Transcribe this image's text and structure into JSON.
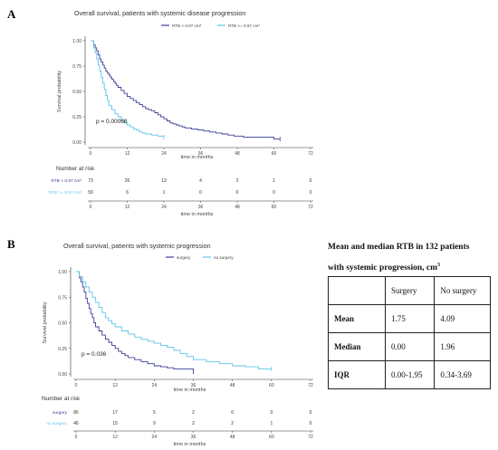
{
  "panels": {
    "a": {
      "letter": "A",
      "chart_data": {
        "type": "line",
        "title": "Overall survival, patients with systemic disease progression",
        "xlabel": "time in months",
        "ylabel": "Survival probability",
        "xlim": [
          0,
          72
        ],
        "ylim": [
          0,
          1
        ],
        "x_ticks": [
          0,
          12,
          24,
          36,
          48,
          60,
          72
        ],
        "y_ticks": [
          "0.00",
          "0.25",
          "0.50",
          "0.75",
          "1.00"
        ],
        "legend_placement": "top",
        "annotation": "p = 0.00068",
        "series": [
          {
            "name": "RTB < 0.97 cm^3",
            "color": "#3b3f99",
            "x": [
              0,
              1,
              1.5,
              2,
              2.5,
              3,
              3.5,
              4,
              4.5,
              5,
              5.5,
              6,
              6.5,
              7,
              7.5,
              8,
              8.5,
              9,
              10,
              11,
              12,
              13,
              14,
              15,
              16,
              17,
              18,
              19,
              20,
              21,
              22,
              23,
              24,
              25,
              26,
              27,
              28,
              29,
              30,
              31,
              33,
              35,
              37,
              39,
              41,
              43,
              45,
              47,
              50,
              53,
              56,
              60,
              62
            ],
            "y": [
              1.0,
              0.96,
              0.93,
              0.9,
              0.86,
              0.82,
              0.79,
              0.76,
              0.73,
              0.7,
              0.68,
              0.66,
              0.64,
              0.62,
              0.6,
              0.58,
              0.56,
              0.54,
              0.51,
              0.48,
              0.45,
              0.43,
              0.41,
              0.39,
              0.37,
              0.35,
              0.33,
              0.32,
              0.31,
              0.29,
              0.27,
              0.25,
              0.23,
              0.21,
              0.19,
              0.18,
              0.17,
              0.16,
              0.15,
              0.14,
              0.13,
              0.12,
              0.11,
              0.1,
              0.09,
              0.08,
              0.07,
              0.06,
              0.05,
              0.05,
              0.05,
              0.03,
              0.03
            ]
          },
          {
            "name": "RTB >= 0.97 cm^3",
            "color": "#5fc4ea",
            "x": [
              0,
              1,
              1.5,
              2,
              2.5,
              3,
              3.5,
              4,
              4.5,
              5,
              5.5,
              6,
              7,
              8,
              9,
              10,
              11,
              12,
              13,
              14,
              15,
              16,
              17,
              18,
              20,
              22,
              24
            ],
            "y": [
              1.0,
              0.93,
              0.88,
              0.82,
              0.76,
              0.7,
              0.64,
              0.58,
              0.52,
              0.46,
              0.41,
              0.36,
              0.32,
              0.28,
              0.25,
              0.22,
              0.19,
              0.17,
              0.15,
              0.13,
              0.12,
              0.1,
              0.09,
              0.08,
              0.07,
              0.06,
              0.05
            ]
          }
        ]
      },
      "risk": {
        "title": "Number at risk",
        "x_ticks": [
          0,
          12,
          24,
          36,
          48,
          60,
          72
        ],
        "rows": [
          {
            "label": "RTB < 0.97 cm^3",
            "color": "#3b3f99",
            "values": [
              "73",
              "26",
              "13",
              "4",
              "2",
              "1",
              "0"
            ]
          },
          {
            "label": "RTB >= 0.97 cm^3",
            "color": "#5fc4ea",
            "values": [
              "59",
              "6",
              "1",
              "0",
              "0",
              "0",
              "0"
            ]
          }
        ]
      }
    },
    "b": {
      "letter": "B",
      "chart_data": {
        "type": "line",
        "title": "Overall survival, patients with systemic progression",
        "xlabel": "time in months",
        "ylabel": "Survival probability",
        "xlim": [
          0,
          72
        ],
        "ylim": [
          0,
          1
        ],
        "x_ticks": [
          0,
          12,
          24,
          36,
          48,
          60,
          72
        ],
        "y_ticks": [
          "0.00",
          "0.25",
          "0.50",
          "0.75",
          "1.00"
        ],
        "legend_placement": "top",
        "annotation": "p = 0.036",
        "series": [
          {
            "name": "surgery",
            "color": "#3b3f99",
            "x": [
              0,
              1,
              1.5,
              2,
              2.5,
              3,
              3.5,
              4,
              4.5,
              5,
              5.5,
              6,
              7,
              8,
              9,
              10,
              11,
              12,
              13,
              14,
              15,
              16,
              18,
              20,
              22,
              24,
              26,
              28,
              30,
              33,
              36
            ],
            "y": [
              1.0,
              0.94,
              0.9,
              0.85,
              0.8,
              0.74,
              0.69,
              0.64,
              0.59,
              0.55,
              0.5,
              0.46,
              0.42,
              0.38,
              0.34,
              0.31,
              0.28,
              0.25,
              0.22,
              0.2,
              0.18,
              0.16,
              0.14,
              0.12,
              0.1,
              0.08,
              0.07,
              0.06,
              0.05,
              0.05,
              0.02
            ]
          },
          {
            "name": "no surgery",
            "color": "#5fc4ea",
            "x": [
              0,
              1,
              2,
              3,
              4,
              5,
              6,
              7,
              8,
              9,
              10,
              11,
              12,
              14,
              16,
              18,
              20,
              22,
              24,
              26,
              28,
              30,
              32,
              34,
              36,
              40,
              44,
              48,
              52,
              56,
              60
            ],
            "y": [
              1.0,
              0.95,
              0.9,
              0.85,
              0.8,
              0.75,
              0.7,
              0.65,
              0.6,
              0.55,
              0.52,
              0.49,
              0.46,
              0.42,
              0.39,
              0.36,
              0.34,
              0.32,
              0.3,
              0.28,
              0.26,
              0.23,
              0.2,
              0.17,
              0.14,
              0.12,
              0.1,
              0.08,
              0.07,
              0.05,
              0.05
            ]
          }
        ]
      },
      "risk": {
        "title": "Number at risk",
        "x_ticks": [
          0,
          12,
          24,
          36,
          48,
          60,
          72
        ],
        "rows": [
          {
            "label": "surgery",
            "color": "#3b3f99",
            "values": [
              "86",
              "17",
              "5",
              "2",
              "0",
              "0",
              "0"
            ]
          },
          {
            "label": "no surgery",
            "color": "#5fc4ea",
            "values": [
              "46",
              "15",
              "9",
              "2",
              "2",
              "1",
              "0"
            ]
          }
        ]
      }
    }
  },
  "rtb_table": {
    "title_line1": "Mean and median RTB in 132 patients",
    "title_line2": "with systemic progression, cm",
    "title_superscript": "3",
    "header": [
      "",
      "Surgery",
      "No surgery"
    ],
    "rows": [
      [
        "Mean",
        "1.75",
        "4.09"
      ],
      [
        "Median",
        "0.00",
        "1.96"
      ],
      [
        "IQR",
        "0.00-1.95",
        "0.34-3.69"
      ]
    ]
  }
}
